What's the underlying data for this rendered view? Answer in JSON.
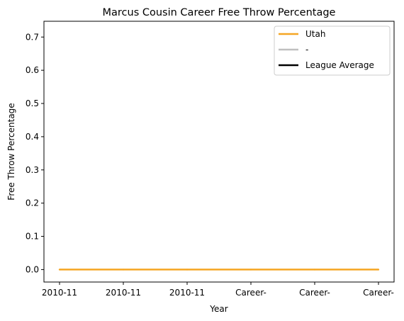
{
  "chart_data": {
    "type": "line",
    "title": "Marcus Cousin Career Free Throw Percentage",
    "xlabel": "Year",
    "ylabel": "Free Throw Percentage",
    "categories": [
      "2010-11",
      "2010-11",
      "2010-11",
      "Career-",
      "Career-",
      "Career-"
    ],
    "ylim": [
      -0.0375,
      0.7475
    ],
    "yticks": [
      "0.0",
      "0.1",
      "0.2",
      "0.3",
      "0.4",
      "0.5",
      "0.6",
      "0.7"
    ],
    "series": [
      {
        "name": "Utah",
        "color": "#f5a623",
        "values": [
          0,
          0,
          0,
          0,
          0,
          0
        ]
      }
    ],
    "legend": {
      "placement": "top-right",
      "entries": [
        {
          "label": "Utah",
          "color": "#f5a623"
        },
        {
          "label": "-",
          "color": "#bfbfbf"
        },
        {
          "label": "League Average",
          "color": "#000000"
        }
      ]
    },
    "grid": false
  }
}
